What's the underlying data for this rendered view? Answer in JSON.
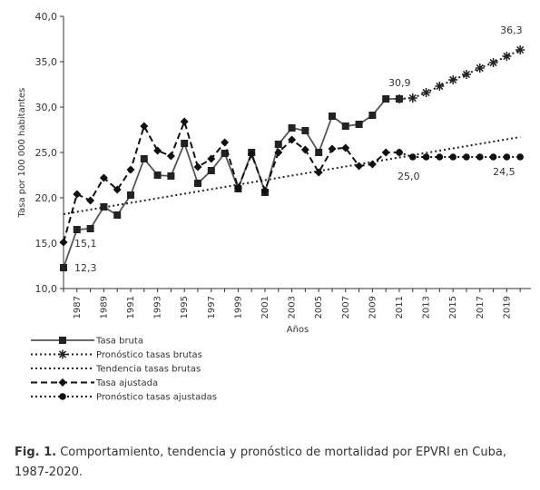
{
  "chart_data": {
    "type": "line",
    "xlabel": "Años",
    "ylabel": "Tasa por 100 000 habitantes",
    "ylim": [
      10,
      40
    ],
    "xlim": [
      1986,
      2020.8
    ],
    "y_ticks": [
      "10,0",
      "15,0",
      "20,0",
      "25,0",
      "30,0",
      "35,0",
      "40,0"
    ],
    "y_tick_values": [
      10,
      15,
      20,
      25,
      30,
      35,
      40
    ],
    "x_ticks": [
      "1987",
      "1989",
      "1991",
      "1993",
      "1995",
      "1997",
      "1999",
      "2001",
      "2003",
      "2005",
      "2007",
      "2009",
      "2011",
      "2013",
      "2015",
      "2017",
      "2019"
    ],
    "legend_position": "bottom-left",
    "series": [
      {
        "name": "Tasa bruta",
        "style": "solid",
        "marker": "square",
        "color": "#555555",
        "x": [
          1986,
          1987,
          1988,
          1989,
          1990,
          1991,
          1992,
          1993,
          1994,
          1995,
          1996,
          1997,
          1998,
          1999,
          2000,
          2001,
          2002,
          2003,
          2004,
          2005,
          2006,
          2007,
          2008,
          2009,
          2010,
          2011
        ],
        "values": [
          12.3,
          16.5,
          16.6,
          19.0,
          18.1,
          20.3,
          24.3,
          22.5,
          22.4,
          26.0,
          21.6,
          23.0,
          24.9,
          21.0,
          25.0,
          20.6,
          25.9,
          27.7,
          27.4,
          25.0,
          29.0,
          27.9,
          28.1,
          29.1,
          30.9,
          30.9
        ]
      },
      {
        "name": "Pronóstico tasas brutas",
        "style": "dotted",
        "marker": "asterisk",
        "color": "#222222",
        "x": [
          2011,
          2012,
          2013,
          2014,
          2015,
          2016,
          2017,
          2018,
          2019,
          2020
        ],
        "values": [
          30.9,
          31.0,
          31.6,
          32.3,
          33.0,
          33.6,
          34.3,
          34.9,
          35.6,
          36.3
        ]
      },
      {
        "name": "Tendencia tasas brutas",
        "style": "dotted",
        "marker": "none",
        "color": "#222222",
        "x": [
          1986,
          2020
        ],
        "values": [
          18.2,
          26.7
        ]
      },
      {
        "name": "Tasa ajustada",
        "style": "dashed",
        "marker": "diamond",
        "color": "#111111",
        "x": [
          1986,
          1987,
          1988,
          1989,
          1990,
          1991,
          1992,
          1993,
          1994,
          1995,
          1996,
          1997,
          1998,
          1999,
          2000,
          2001,
          2002,
          2003,
          2004,
          2005,
          2006,
          2007,
          2008,
          2009,
          2010,
          2011
        ],
        "values": [
          15.1,
          20.4,
          19.7,
          22.2,
          20.9,
          23.1,
          27.9,
          25.2,
          24.6,
          28.4,
          23.4,
          24.3,
          26.1,
          21.1,
          24.8,
          20.8,
          25.0,
          26.4,
          25.3,
          22.8,
          25.4,
          25.5,
          23.5,
          23.7,
          25.0,
          25.0
        ]
      },
      {
        "name": "Pronóstico tasas ajustadas",
        "style": "dotted",
        "marker": "circle",
        "color": "#111111",
        "x": [
          2011,
          2012,
          2013,
          2014,
          2015,
          2016,
          2017,
          2018,
          2019,
          2020
        ],
        "values": [
          25.0,
          24.5,
          24.5,
          24.5,
          24.5,
          24.5,
          24.5,
          24.5,
          24.5,
          24.5
        ]
      }
    ],
    "annotations": [
      {
        "text": "12,3",
        "x": 1986,
        "y": 12.3
      },
      {
        "text": "15,1",
        "x": 1986,
        "y": 15.1
      },
      {
        "text": "30,9",
        "x": 2011,
        "y": 30.9
      },
      {
        "text": "36,3",
        "x": 2020,
        "y": 36.3
      },
      {
        "text": "25,0",
        "x": 2011,
        "y": 25.0
      },
      {
        "text": "24,5",
        "x": 2020,
        "y": 24.5
      }
    ]
  },
  "caption": {
    "label": "Fig. 1.",
    "text": "Comportamiento, tendencia y pronóstico de mortalidad por EPVRI en Cuba, 1987-2020."
  }
}
